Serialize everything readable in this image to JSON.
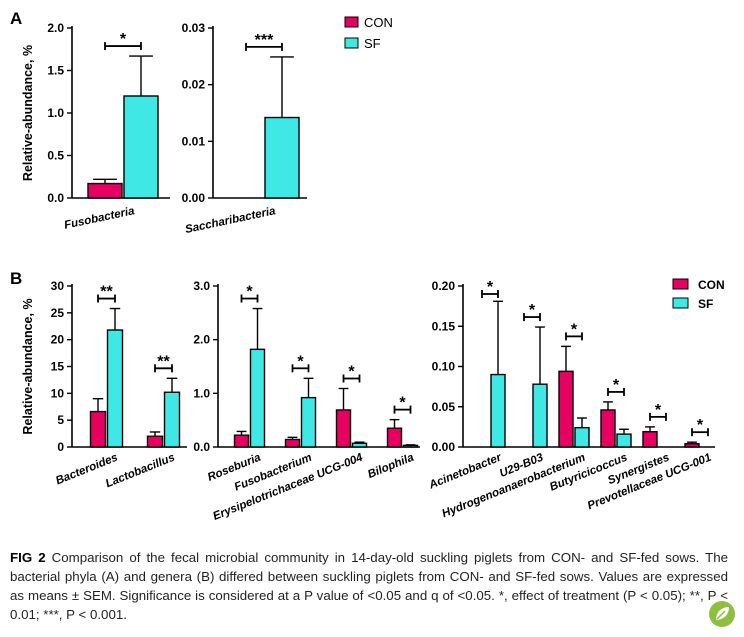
{
  "colors": {
    "con": "#e6005f",
    "sf": "#3fe8e4"
  },
  "legend": {
    "con": "CON",
    "sf": "SF"
  },
  "caption": {
    "label": "FIG 2",
    "text": "Comparison of the fecal microbial community in 14-day-old suckling piglets from CON- and SF-fed sows. The bacterial phyla (A) and genera (B) differed between suckling piglets from CON- and SF-fed sows. Values are expressed as means ± SEM. Significance is considered at a P value of <0.05 and q of <0.05. *, effect of treatment (P < 0.05); **, P < 0.01; ***, P < 0.001."
  },
  "chart_data": [
    {
      "type": "bar",
      "panel": "A",
      "ylabel": "Relative-abundance, %",
      "categories": [
        "Fusobacteria"
      ],
      "ylim": [
        0,
        2.0
      ],
      "yticks": [
        "0.0",
        "0.5",
        "1.0",
        "1.5",
        "2.0"
      ],
      "series": [
        {
          "name": "CON",
          "values": [
            0.17
          ],
          "sem": [
            0.05
          ]
        },
        {
          "name": "SF",
          "values": [
            1.2
          ],
          "sem": [
            0.47
          ]
        }
      ],
      "significance": [
        "*"
      ]
    },
    {
      "type": "bar",
      "panel": "A",
      "categories": [
        "Saccharibacteria"
      ],
      "ylim": [
        0,
        0.03
      ],
      "yticks": [
        "0.00",
        "0.01",
        "0.02",
        "0.03"
      ],
      "series": [
        {
          "name": "CON",
          "values": [
            0
          ],
          "sem": [
            0
          ]
        },
        {
          "name": "SF",
          "values": [
            0.0142
          ],
          "sem": [
            0.0107
          ]
        }
      ],
      "significance": [
        "***"
      ]
    },
    {
      "type": "bar",
      "panel": "B",
      "ylabel": "Relative-abundance, %",
      "categories": [
        "Bacteroides",
        "Lactobacillus"
      ],
      "ylim": [
        0,
        30
      ],
      "yticks": [
        "0",
        "5",
        "10",
        "15",
        "20",
        "25",
        "30"
      ],
      "series": [
        {
          "name": "CON",
          "values": [
            6.6,
            2.0
          ],
          "sem": [
            2.4,
            0.8
          ]
        },
        {
          "name": "SF",
          "values": [
            21.8,
            10.2
          ],
          "sem": [
            4.0,
            2.6
          ]
        }
      ],
      "significance": [
        "**",
        "**"
      ]
    },
    {
      "type": "bar",
      "panel": "B",
      "categories": [
        "Roseburia",
        "Fusobacterium",
        "Erysipelotrichaceae UCG-004",
        "Bilophila"
      ],
      "ylim": [
        0,
        3.0
      ],
      "yticks": [
        "0.0",
        "1.0",
        "2.0",
        "3.0"
      ],
      "series": [
        {
          "name": "CON",
          "values": [
            0.22,
            0.14,
            0.69,
            0.35
          ],
          "sem": [
            0.07,
            0.04,
            0.4,
            0.16
          ]
        },
        {
          "name": "SF",
          "values": [
            1.82,
            0.92,
            0.07,
            0.03
          ],
          "sem": [
            0.76,
            0.36,
            0.02,
            0.01
          ]
        }
      ],
      "significance": [
        "*",
        "*",
        "*",
        "*"
      ]
    },
    {
      "type": "bar",
      "panel": "B",
      "categories": [
        "Acinetobacter",
        "U29-B03",
        "Hydrogenoanaerobacterium",
        "Butyricicoccus",
        "Synergistes",
        "Prevotellaceae UCG-001"
      ],
      "ylim": [
        0,
        0.2
      ],
      "yticks": [
        "0.00",
        "0.05",
        "0.10",
        "0.15",
        "0.20"
      ],
      "series": [
        {
          "name": "CON",
          "values": [
            0,
            0,
            0.094,
            0.046,
            0.019,
            0.004
          ],
          "sem": [
            0,
            0,
            0.031,
            0.01,
            0.006,
            0.002
          ]
        },
        {
          "name": "SF",
          "values": [
            0.09,
            0.078,
            0.024,
            0.016,
            0,
            0
          ],
          "sem": [
            0.091,
            0.071,
            0.012,
            0.006,
            0,
            0
          ]
        }
      ],
      "significance": [
        "*",
        "*",
        "*",
        "*",
        "*",
        "*"
      ],
      "legend_placement": "top-right"
    }
  ]
}
